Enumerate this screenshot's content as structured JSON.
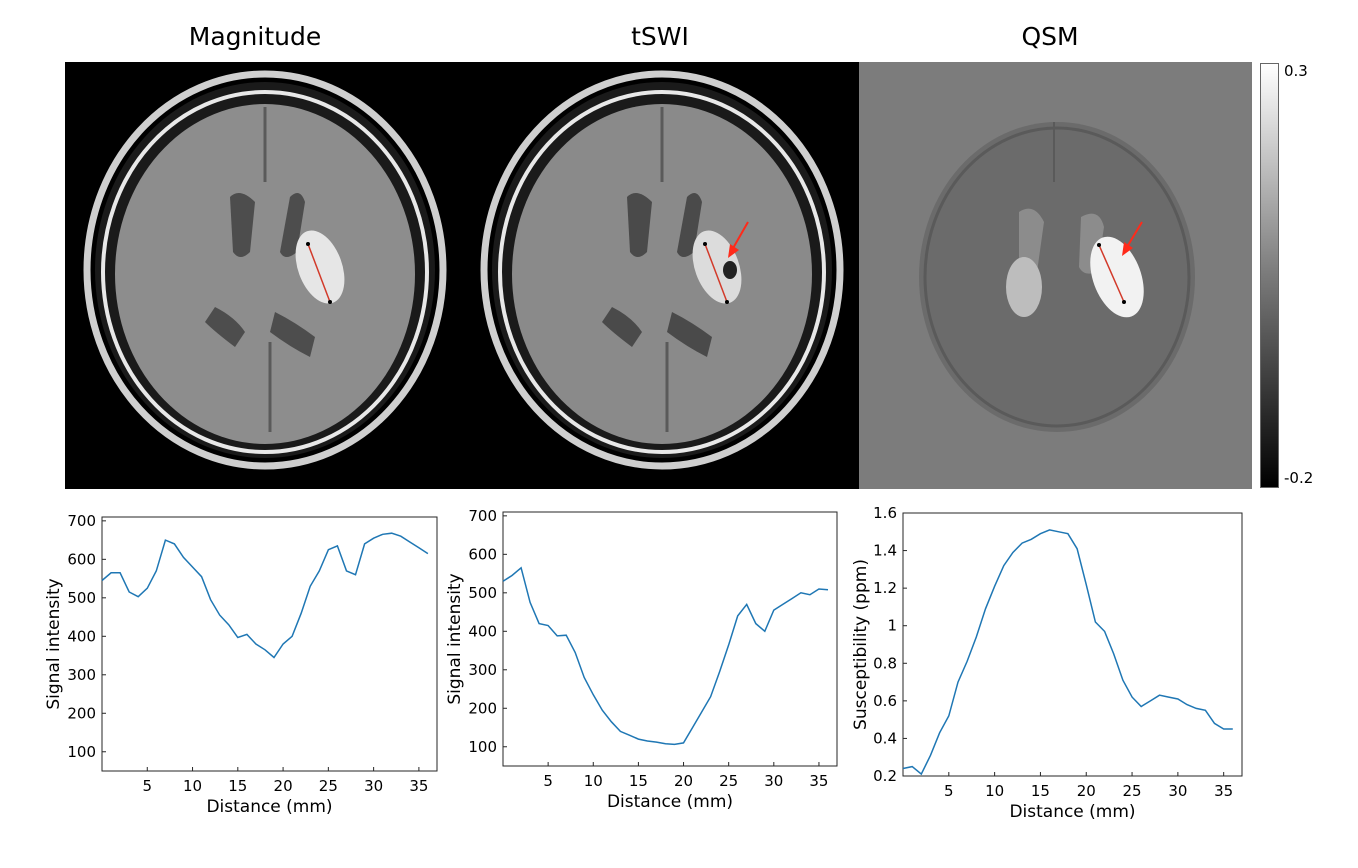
{
  "panels": {
    "titles": [
      "Magnitude",
      "tSWI",
      "QSM"
    ]
  },
  "colorbar": {
    "max_label": "0.3",
    "min_label": "-0.2"
  },
  "colors": {
    "line": "#1f77b4",
    "arrow": "#ff2a1a",
    "profile": "#d23a2a"
  },
  "chart_data": [
    {
      "type": "line",
      "xlabel": "Distance (mm)",
      "ylabel": "Signal intensity",
      "xlim": [
        0,
        37
      ],
      "ylim": [
        50,
        710
      ],
      "xticks": [
        5,
        10,
        15,
        20,
        25,
        30,
        35
      ],
      "yticks": [
        100,
        200,
        300,
        400,
        500,
        600,
        700
      ],
      "x": [
        0,
        1,
        2,
        3,
        4,
        5,
        6,
        7,
        8,
        9,
        10,
        11,
        12,
        13,
        14,
        15,
        16,
        17,
        18,
        19,
        20,
        21,
        22,
        23,
        24,
        25,
        26,
        27,
        28,
        29,
        30,
        31,
        32,
        33,
        34,
        35,
        36
      ],
      "y": [
        545,
        565,
        565,
        515,
        503,
        525,
        570,
        650,
        640,
        605,
        580,
        555,
        495,
        455,
        430,
        397,
        405,
        380,
        365,
        345,
        380,
        400,
        460,
        530,
        570,
        625,
        635,
        570,
        560,
        640,
        655,
        665,
        668,
        660,
        645,
        630,
        615
      ]
    },
    {
      "type": "line",
      "xlabel": "Distance (mm)",
      "ylabel": "Signal intensity",
      "xlim": [
        0,
        37
      ],
      "ylim": [
        50,
        710
      ],
      "xticks": [
        5,
        10,
        15,
        20,
        25,
        30,
        35
      ],
      "yticks": [
        100,
        200,
        300,
        400,
        500,
        600,
        700
      ],
      "x": [
        0,
        1,
        2,
        3,
        4,
        5,
        6,
        7,
        8,
        9,
        10,
        11,
        12,
        13,
        14,
        15,
        16,
        17,
        18,
        19,
        20,
        21,
        22,
        23,
        24,
        25,
        26,
        27,
        28,
        29,
        30,
        31,
        32,
        33,
        34,
        35,
        36
      ],
      "y": [
        530,
        545,
        565,
        475,
        420,
        415,
        388,
        390,
        345,
        280,
        235,
        195,
        165,
        140,
        130,
        120,
        115,
        112,
        108,
        106,
        110,
        150,
        190,
        230,
        295,
        365,
        440,
        470,
        420,
        400,
        455,
        470,
        485,
        500,
        495,
        510,
        508
      ]
    },
    {
      "type": "line",
      "xlabel": "Distance (mm)",
      "ylabel": "Susceptibility (ppm)",
      "xlim": [
        0,
        37
      ],
      "ylim": [
        0.2,
        1.6
      ],
      "xticks": [
        5,
        10,
        15,
        20,
        25,
        30,
        35
      ],
      "yticks": [
        0.2,
        0.4,
        0.6,
        0.8,
        1,
        1.2,
        1.4,
        1.6
      ],
      "x": [
        0,
        1,
        2,
        3,
        4,
        5,
        6,
        7,
        8,
        9,
        10,
        11,
        12,
        13,
        14,
        15,
        16,
        17,
        18,
        19,
        20,
        21,
        22,
        23,
        24,
        25,
        26,
        27,
        28,
        29,
        30,
        31,
        32,
        33,
        34,
        35,
        36
      ],
      "y": [
        0.24,
        0.25,
        0.21,
        0.31,
        0.43,
        0.52,
        0.7,
        0.81,
        0.94,
        1.09,
        1.21,
        1.32,
        1.39,
        1.44,
        1.46,
        1.49,
        1.51,
        1.5,
        1.49,
        1.41,
        1.22,
        1.02,
        0.97,
        0.85,
        0.71,
        0.62,
        0.57,
        0.6,
        0.63,
        0.62,
        0.61,
        0.58,
        0.56,
        0.55,
        0.48,
        0.45,
        0.45
      ]
    }
  ]
}
